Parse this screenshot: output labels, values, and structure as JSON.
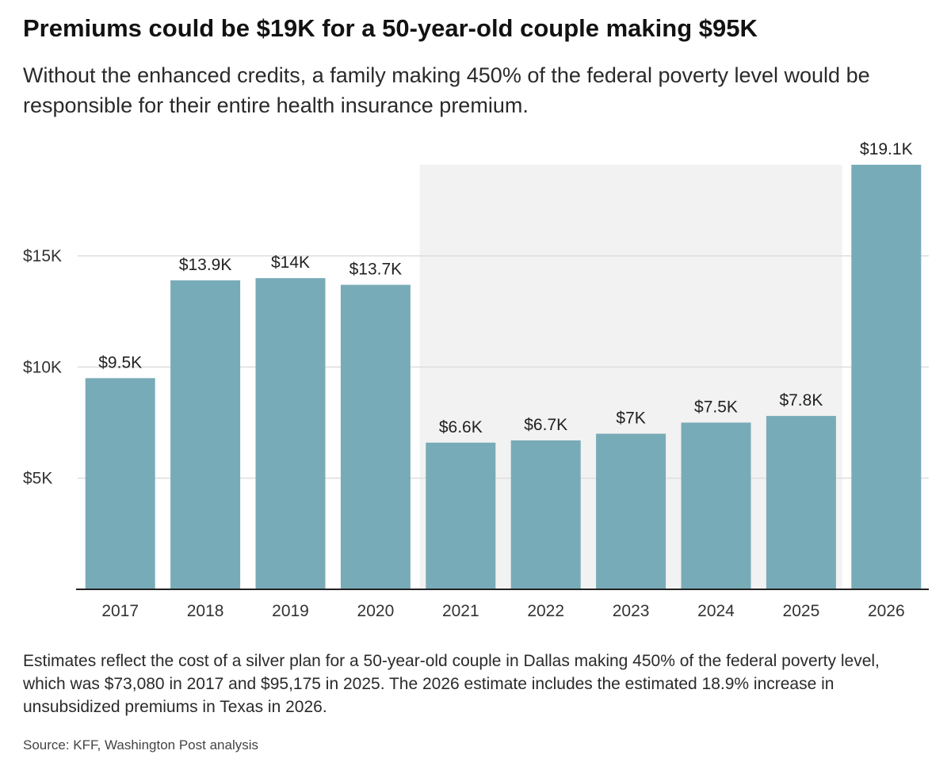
{
  "header": {
    "title": "Premiums could be $19K for a 50-year-old couple making $95K",
    "subtitle": "Without the enhanced credits, a family making 450% of the federal poverty level would be responsible for their entire health insurance premium."
  },
  "footer": {
    "note": "Estimates reflect the cost of a silver plan for a 50-year-old couple in Dallas making 450% of the federal poverty level, which was $73,080 in 2017 and $95,175 in 2025. The 2026 estimate includes the estimated 18.9% increase in unsubsidized premiums in Texas in 2026.",
    "source": "Source: KFF, Washington Post analysis"
  },
  "chart_data": {
    "type": "bar",
    "title": "Premiums could be $19K for a 50-year-old couple making $95K",
    "xlabel": "",
    "ylabel": "",
    "categories": [
      "2017",
      "2018",
      "2019",
      "2020",
      "2021",
      "2022",
      "2023",
      "2024",
      "2025",
      "2026"
    ],
    "values": [
      9500,
      13900,
      14000,
      13700,
      6600,
      6700,
      7000,
      7500,
      7800,
      19100
    ],
    "data_labels": [
      "$9.5K",
      "$13.9K",
      "$14K",
      "$13.7K",
      "$6.6K",
      "$6.7K",
      "$7K",
      "$7.5K",
      "$7.8K",
      "$19.1K"
    ],
    "ylim": [
      0,
      19100
    ],
    "yticks": [
      5000,
      10000,
      15000
    ],
    "ytick_labels": [
      "$5K",
      "$10K",
      "$15K"
    ],
    "grid": true,
    "highlight_band": {
      "from": "2021",
      "to": "2025"
    },
    "colors": {
      "bar": "#78abb8",
      "band": "#f2f2f2",
      "grid": "#dddddd",
      "axis": "#222222"
    }
  }
}
